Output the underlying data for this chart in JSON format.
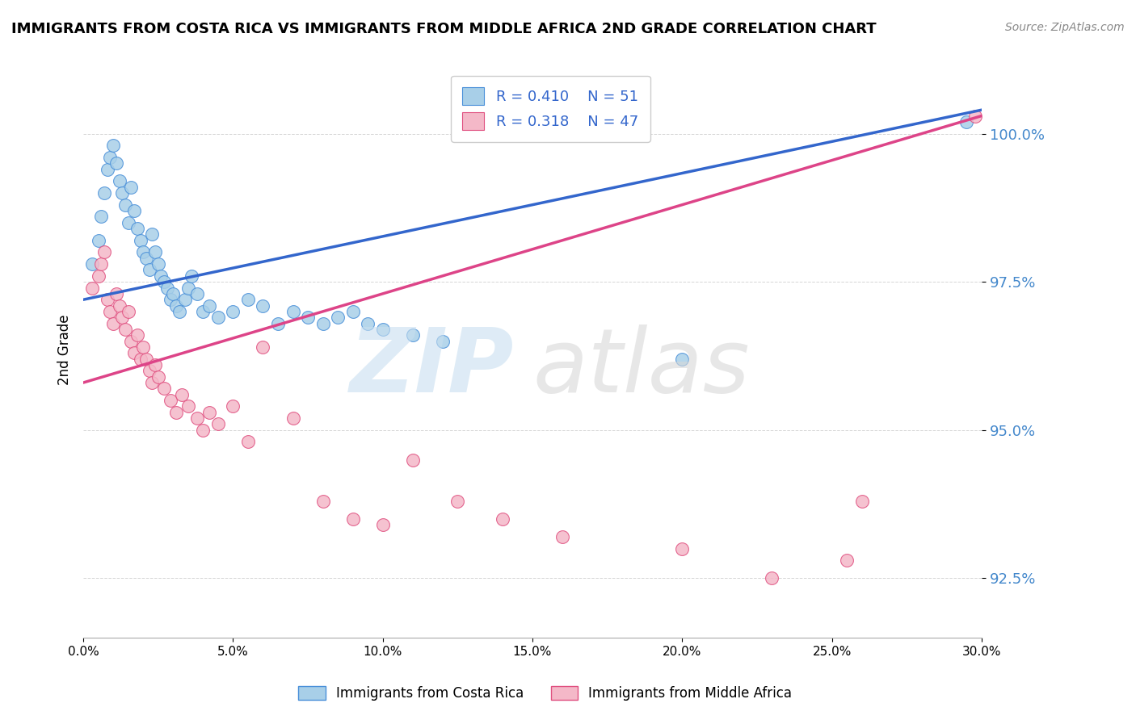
{
  "title": "IMMIGRANTS FROM COSTA RICA VS IMMIGRANTS FROM MIDDLE AFRICA 2ND GRADE CORRELATION CHART",
  "source": "Source: ZipAtlas.com",
  "ylabel": "2nd Grade",
  "xlim": [
    0.0,
    30.0
  ],
  "ylim": [
    91.5,
    101.2
  ],
  "yticks": [
    92.5,
    95.0,
    97.5,
    100.0
  ],
  "xticks": [
    0.0,
    5.0,
    10.0,
    15.0,
    20.0,
    25.0,
    30.0
  ],
  "blue_color": "#a8cfe8",
  "pink_color": "#f4b8c8",
  "blue_edge_color": "#4a90d9",
  "pink_edge_color": "#e05080",
  "blue_line_color": "#3366cc",
  "pink_line_color": "#dd4488",
  "blue_label": "Immigrants from Costa Rica",
  "pink_label": "Immigrants from Middle Africa",
  "blue_R": "0.410",
  "blue_N": "51",
  "pink_R": "0.318",
  "pink_N": "47",
  "blue_scatter_x": [
    0.3,
    0.5,
    0.6,
    0.7,
    0.8,
    0.9,
    1.0,
    1.1,
    1.2,
    1.3,
    1.4,
    1.5,
    1.6,
    1.7,
    1.8,
    1.9,
    2.0,
    2.1,
    2.2,
    2.3,
    2.4,
    2.5,
    2.6,
    2.7,
    2.8,
    2.9,
    3.0,
    3.1,
    3.2,
    3.4,
    3.5,
    3.6,
    3.8,
    4.0,
    4.2,
    4.5,
    5.0,
    5.5,
    6.0,
    6.5,
    7.0,
    7.5,
    8.0,
    8.5,
    9.0,
    9.5,
    10.0,
    11.0,
    12.0,
    20.0,
    29.5
  ],
  "blue_scatter_y": [
    97.8,
    98.2,
    98.6,
    99.0,
    99.4,
    99.6,
    99.8,
    99.5,
    99.2,
    99.0,
    98.8,
    98.5,
    99.1,
    98.7,
    98.4,
    98.2,
    98.0,
    97.9,
    97.7,
    98.3,
    98.0,
    97.8,
    97.6,
    97.5,
    97.4,
    97.2,
    97.3,
    97.1,
    97.0,
    97.2,
    97.4,
    97.6,
    97.3,
    97.0,
    97.1,
    96.9,
    97.0,
    97.2,
    97.1,
    96.8,
    97.0,
    96.9,
    96.8,
    96.9,
    97.0,
    96.8,
    96.7,
    96.6,
    96.5,
    96.2,
    100.2
  ],
  "pink_scatter_x": [
    0.3,
    0.5,
    0.6,
    0.7,
    0.8,
    0.9,
    1.0,
    1.1,
    1.2,
    1.3,
    1.4,
    1.5,
    1.6,
    1.7,
    1.8,
    1.9,
    2.0,
    2.1,
    2.2,
    2.3,
    2.4,
    2.5,
    2.7,
    2.9,
    3.1,
    3.3,
    3.5,
    3.8,
    4.0,
    4.2,
    4.5,
    5.0,
    5.5,
    6.0,
    7.0,
    8.0,
    9.0,
    10.0,
    11.0,
    12.5,
    14.0,
    16.0,
    20.0,
    23.0,
    25.5,
    26.0,
    29.8
  ],
  "pink_scatter_y": [
    97.4,
    97.6,
    97.8,
    98.0,
    97.2,
    97.0,
    96.8,
    97.3,
    97.1,
    96.9,
    96.7,
    97.0,
    96.5,
    96.3,
    96.6,
    96.2,
    96.4,
    96.2,
    96.0,
    95.8,
    96.1,
    95.9,
    95.7,
    95.5,
    95.3,
    95.6,
    95.4,
    95.2,
    95.0,
    95.3,
    95.1,
    95.4,
    94.8,
    96.4,
    95.2,
    93.8,
    93.5,
    93.4,
    94.5,
    93.8,
    93.5,
    93.2,
    93.0,
    92.5,
    92.8,
    93.8,
    100.3
  ],
  "blue_trendline_x0": 0.0,
  "blue_trendline_y0": 97.2,
  "blue_trendline_x1": 30.0,
  "blue_trendline_y1": 100.4,
  "pink_trendline_x0": 0.0,
  "pink_trendline_y0": 95.8,
  "pink_trendline_x1": 30.0,
  "pink_trendline_y1": 100.3
}
